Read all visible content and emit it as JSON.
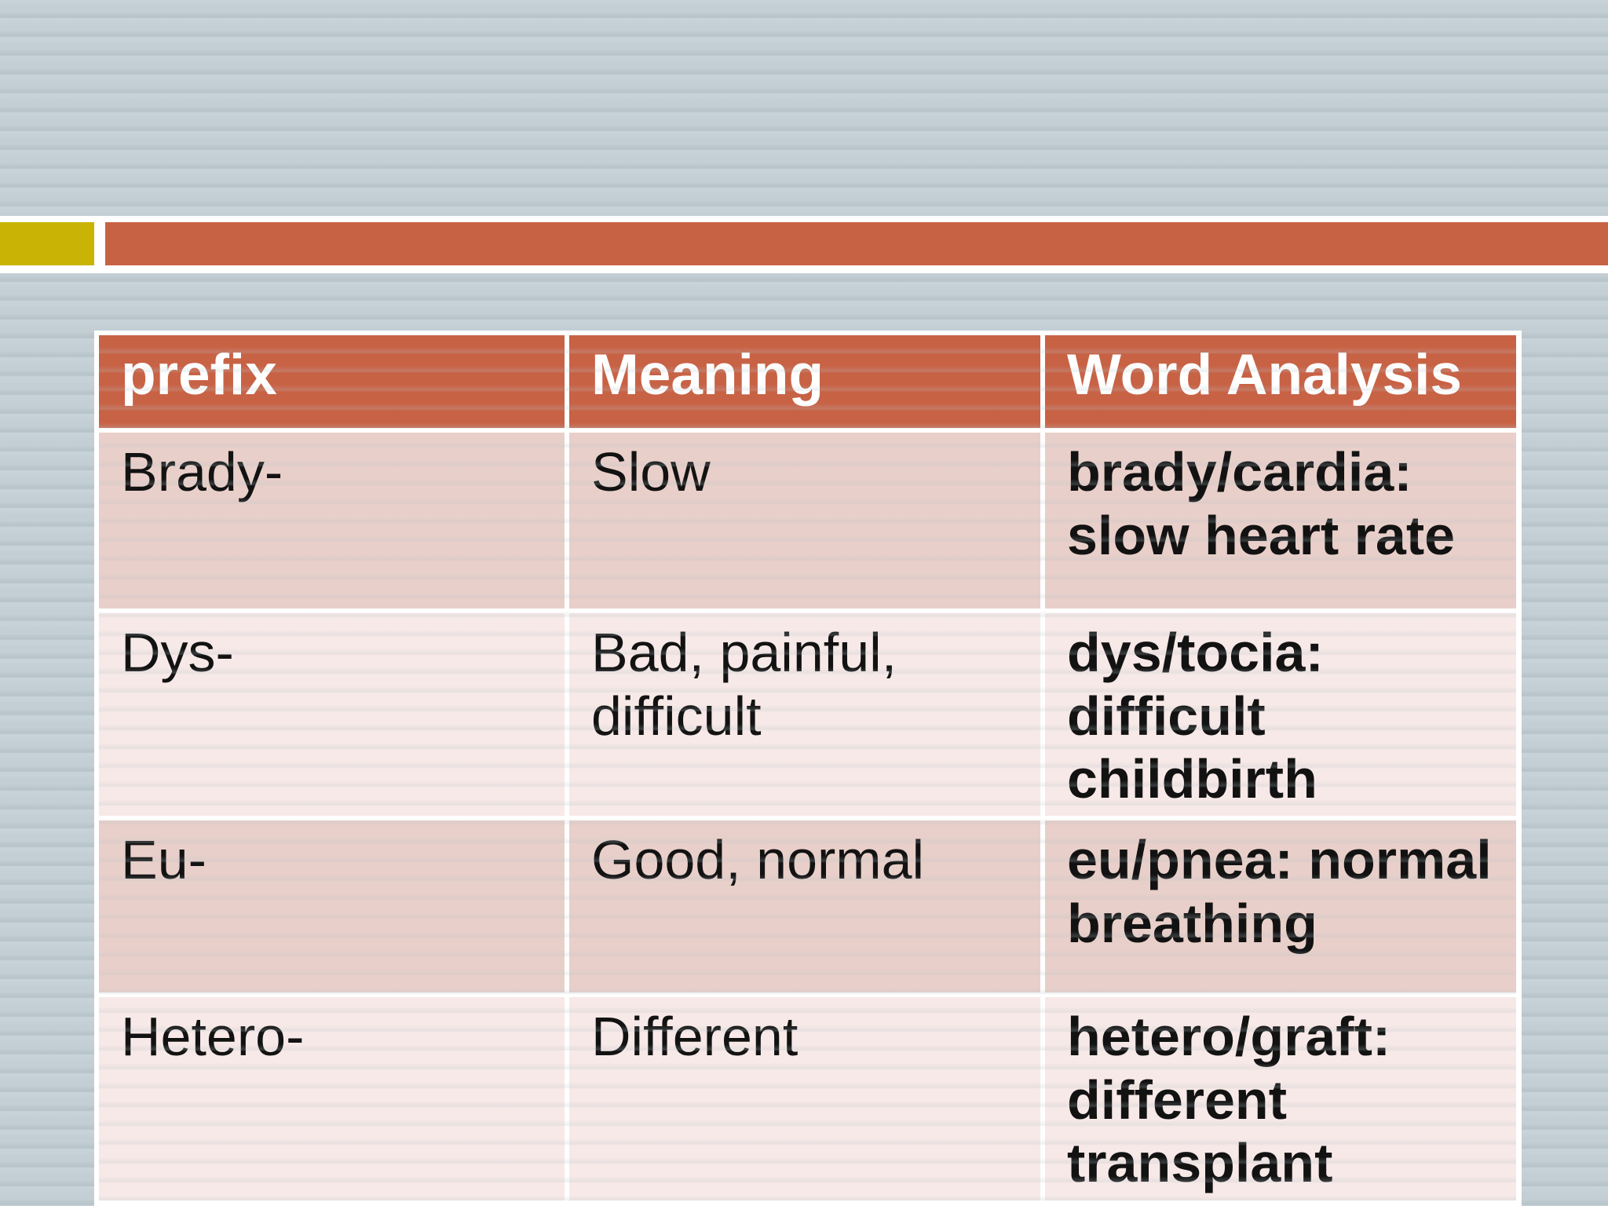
{
  "colors": {
    "background": "#c3cfd5",
    "stripe_dark": "#b7c4ca",
    "stripe_light": "#c9d4da",
    "band_bg": "#ffffff",
    "accent_square": "#c9b405",
    "accent_bar": "#c86245",
    "header_bg": "#c86245",
    "header_text": "#ffffff",
    "row_odd_bg": "#e9cfc9",
    "row_even_bg": "#f7e9e7",
    "cell_text": "#121212",
    "table_border": "#ffffff"
  },
  "table": {
    "headers": [
      "prefix",
      "Meaning",
      "Word Analysis"
    ],
    "rows": [
      {
        "prefix": "Brady-",
        "meaning": "Slow",
        "analysis": "brady/cardia:\nslow heart rate"
      },
      {
        "prefix": "Dys-",
        "meaning": "Bad, painful,\ndifficult",
        "analysis": "dys/tocia:\ndifficult\nchildbirth"
      },
      {
        "prefix": "Eu-",
        "meaning": "Good, normal",
        "analysis": "eu/pnea: normal\nbreathing"
      },
      {
        "prefix": "Hetero-",
        "meaning": "Different",
        "analysis": "hetero/graft:\ndifferent\ntransplant"
      }
    ]
  }
}
